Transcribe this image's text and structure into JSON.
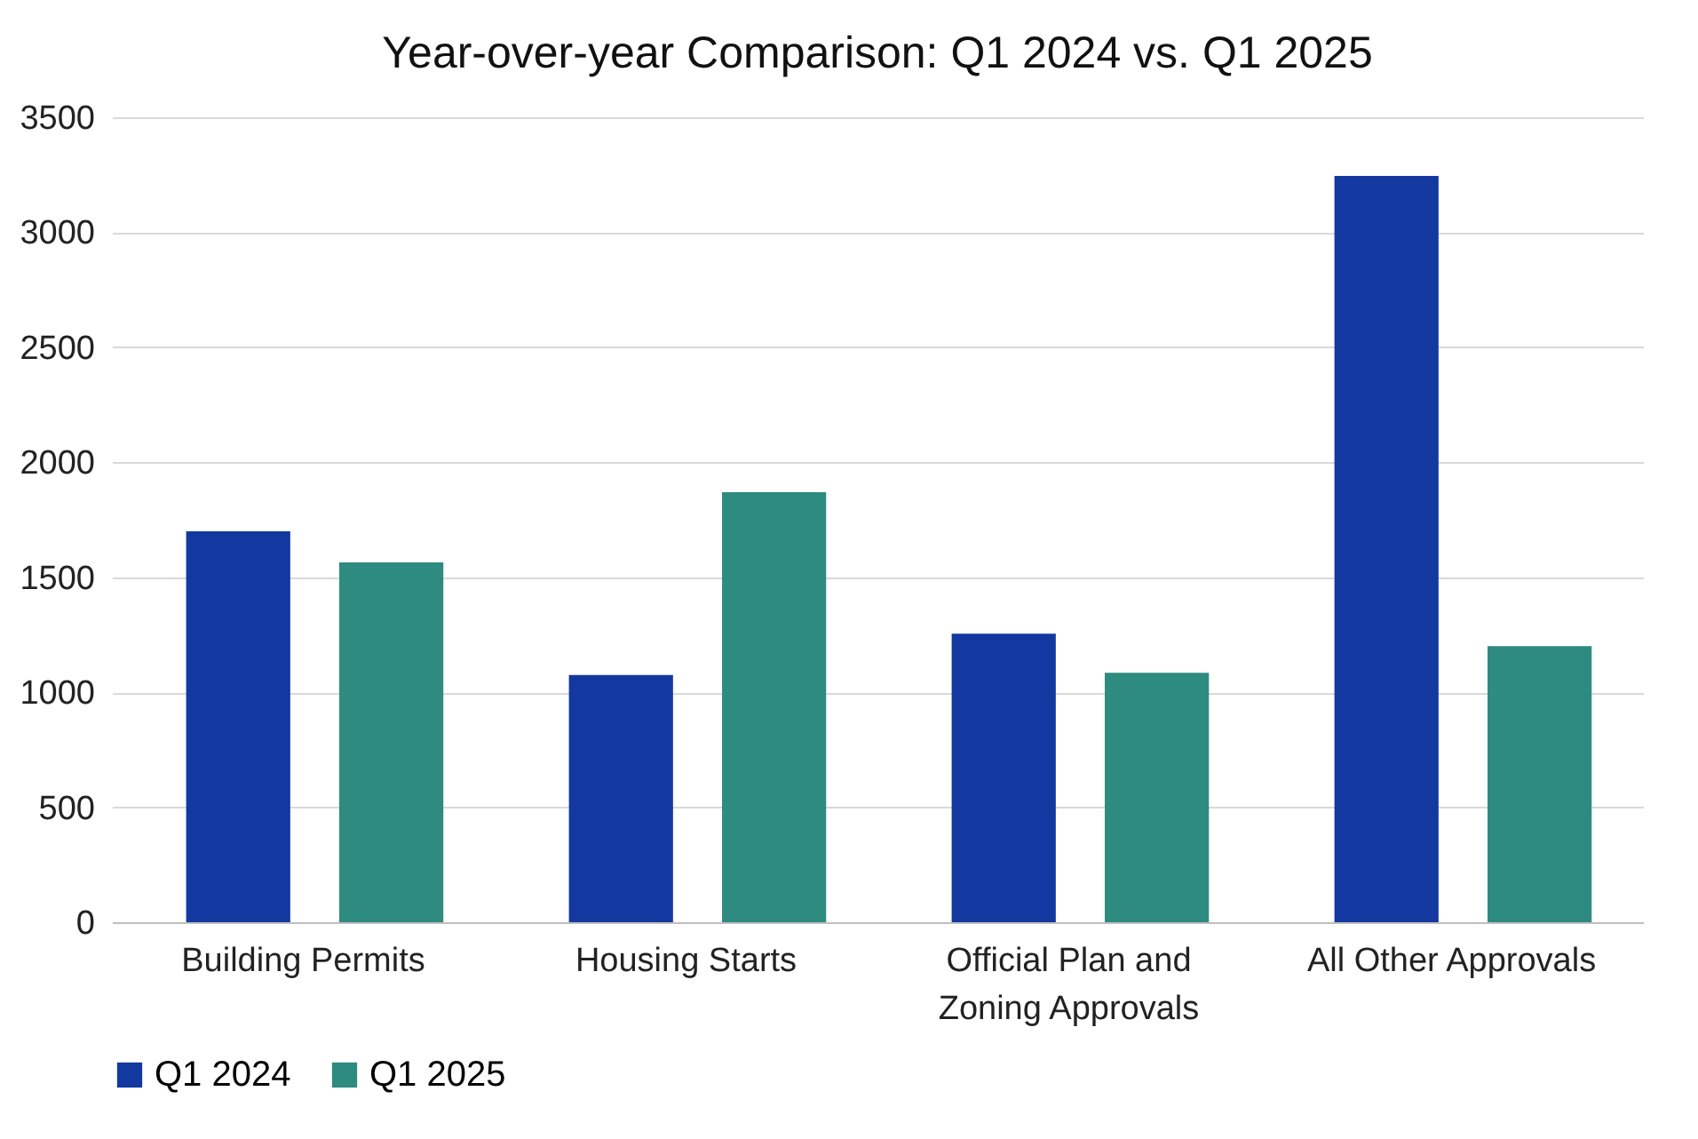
{
  "chart_data": {
    "type": "bar",
    "title": "Year-over-year Comparison: Q1 2024 vs. Q1 2025",
    "categories": [
      "Building Permits",
      "Housing Starts",
      "Official Plan and Zoning Approvals",
      "All Other Approvals"
    ],
    "series": [
      {
        "name": "Q1 2024",
        "color": "#1338a0",
        "values": [
          1700,
          1075,
          1255,
          3245
        ]
      },
      {
        "name": "Q1 2025",
        "color": "#2e8b7f",
        "values": [
          1565,
          1870,
          1085,
          1200
        ]
      }
    ],
    "ylim": [
      0,
      3500
    ],
    "yticks": [
      0,
      500,
      1000,
      1500,
      2000,
      2500,
      3000,
      3500
    ],
    "grid": "y",
    "legend": "bottom"
  }
}
